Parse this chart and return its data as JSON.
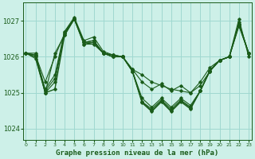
{
  "title": "Graphe pression niveau de la mer (hPa)",
  "background_color": "#cdf0e8",
  "grid_color": "#a0d8d0",
  "line_color": "#1a5c1a",
  "marker_color": "#1a5c1a",
  "ylim": [
    1023.7,
    1027.5
  ],
  "xlim": [
    -0.3,
    23.3
  ],
  "yticks": [
    1024,
    1025,
    1026,
    1027
  ],
  "xticks": [
    0,
    1,
    2,
    3,
    4,
    5,
    6,
    7,
    8,
    9,
    10,
    11,
    12,
    13,
    14,
    15,
    16,
    17,
    18,
    19,
    20,
    21,
    22,
    23
  ],
  "figsize": [
    3.2,
    2.0
  ],
  "dpi": 100,
  "series": [
    {
      "y": [
        1026.1,
        1026.1,
        1025.0,
        1026.1,
        1026.6,
        1027.05,
        1026.35,
        1026.35,
        1026.1,
        1026.05,
        1026.0,
        1025.65,
        1025.5,
        1025.3,
        1025.2,
        1025.1,
        1025.05,
        1025.0,
        1025.3,
        1025.7,
        1025.9,
        1026.0,
        1027.05,
        1026.0
      ],
      "lw": 0.8
    },
    {
      "y": [
        1026.1,
        1026.05,
        1025.3,
        1026.0,
        1026.65,
        1027.05,
        1026.4,
        1026.4,
        1026.1,
        1026.05,
        1026.0,
        1025.65,
        1025.3,
        1025.1,
        1025.25,
        1025.05,
        1025.2,
        1025.0,
        1025.2,
        1025.6,
        1025.9,
        1026.0,
        1026.85,
        1026.1
      ],
      "lw": 0.8
    },
    {
      "y": [
        1026.1,
        1026.05,
        1025.1,
        1025.5,
        1026.7,
        1027.1,
        1026.45,
        1026.55,
        1026.15,
        1026.05,
        1026.0,
        1025.6,
        1024.85,
        1024.6,
        1024.85,
        1024.6,
        1024.85,
        1024.65,
        1025.05,
        1025.6,
        1025.9,
        1026.0,
        1026.95,
        1026.1
      ],
      "lw": 0.8
    },
    {
      "y": [
        1026.1,
        1026.0,
        1025.05,
        1025.4,
        1026.7,
        1027.05,
        1026.4,
        1026.45,
        1026.1,
        1026.0,
        1026.0,
        1025.6,
        1024.75,
        1024.55,
        1024.8,
        1024.55,
        1024.8,
        1024.6,
        1025.05,
        1025.6,
        1025.9,
        1026.0,
        1026.9,
        1026.1
      ],
      "lw": 0.8
    },
    {
      "y": [
        1026.1,
        1025.95,
        1025.0,
        1025.3,
        1026.65,
        1027.05,
        1026.4,
        1026.45,
        1026.1,
        1026.0,
        1026.0,
        1025.6,
        1024.75,
        1024.5,
        1024.78,
        1024.5,
        1024.78,
        1024.58,
        1025.05,
        1025.62,
        1025.9,
        1026.0,
        1026.92,
        1026.1
      ],
      "lw": 0.8
    },
    {
      "y": [
        1026.1,
        1026.0,
        1025.0,
        1025.1,
        1026.6,
        1027.05,
        1026.35,
        1026.4,
        1026.1,
        1026.0,
        1026.0,
        1025.6,
        1024.72,
        1024.48,
        1024.75,
        1024.48,
        1024.75,
        1024.55,
        1025.05,
        1025.62,
        1025.9,
        1026.0,
        1026.9,
        1026.1
      ],
      "lw": 1.0
    }
  ]
}
